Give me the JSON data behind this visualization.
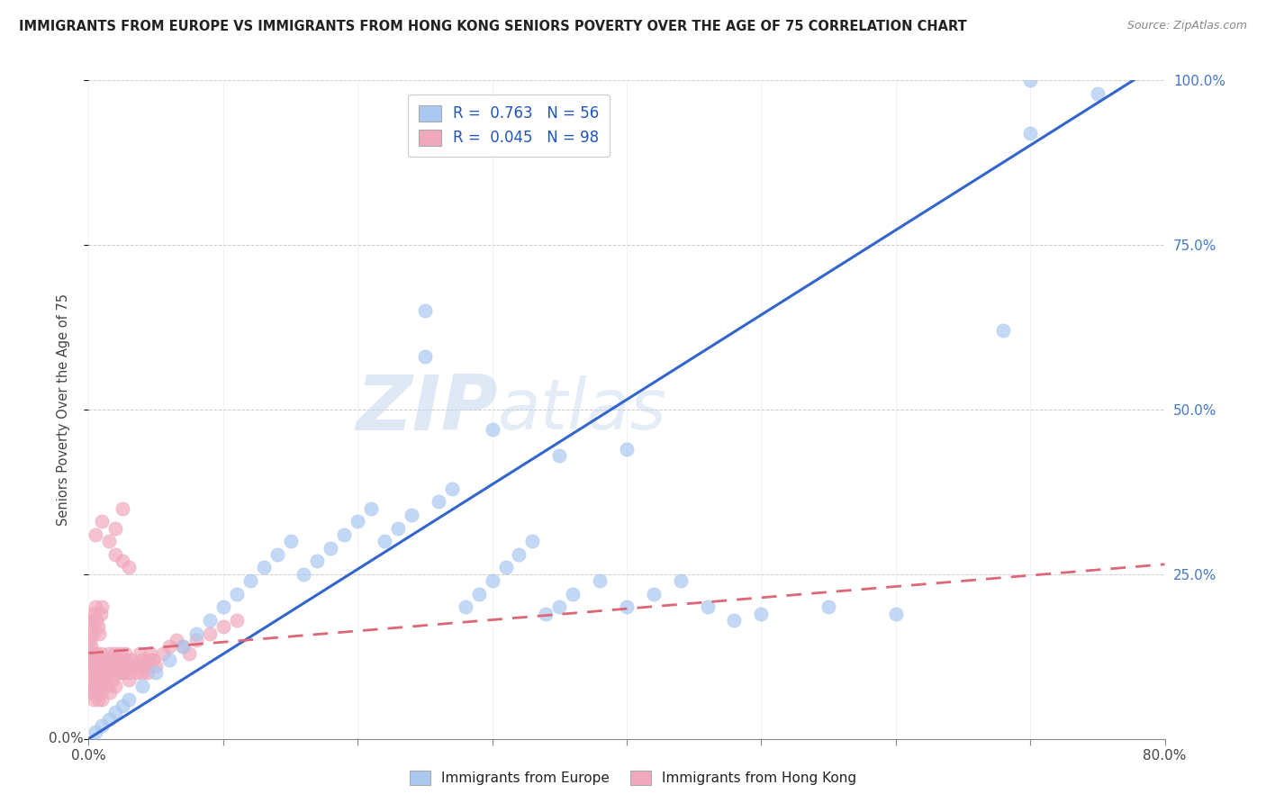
{
  "title": "IMMIGRANTS FROM EUROPE VS IMMIGRANTS FROM HONG KONG SENIORS POVERTY OVER THE AGE OF 75 CORRELATION CHART",
  "source": "Source: ZipAtlas.com",
  "ylabel": "Seniors Poverty Over the Age of 75",
  "xlim": [
    0,
    0.8
  ],
  "ylim": [
    0,
    1.0
  ],
  "legend_europe_label": "R =  0.763   N = 56",
  "legend_hk_label": "R =  0.045   N = 98",
  "legend_bottom_europe": "Immigrants from Europe",
  "legend_bottom_hk": "Immigrants from Hong Kong",
  "europe_color": "#aac8f0",
  "hk_color": "#f0a8bc",
  "europe_line_color": "#3366cc",
  "hk_line_color": "#dd6677",
  "watermark_zip": "ZIP",
  "watermark_atlas": "atlas",
  "background_color": "#ffffff",
  "europe_x": [
    0.005,
    0.01,
    0.015,
    0.02,
    0.025,
    0.03,
    0.04,
    0.05,
    0.06,
    0.07,
    0.08,
    0.09,
    0.1,
    0.11,
    0.12,
    0.13,
    0.14,
    0.15,
    0.16,
    0.17,
    0.18,
    0.19,
    0.2,
    0.21,
    0.22,
    0.23,
    0.24,
    0.25,
    0.26,
    0.27,
    0.28,
    0.29,
    0.3,
    0.31,
    0.32,
    0.33,
    0.34,
    0.35,
    0.36,
    0.38,
    0.4,
    0.42,
    0.44,
    0.46,
    0.48,
    0.5,
    0.55,
    0.6,
    0.68,
    0.7,
    0.25,
    0.3,
    0.35,
    0.4,
    0.7,
    0.75
  ],
  "europe_y": [
    0.01,
    0.02,
    0.03,
    0.04,
    0.05,
    0.06,
    0.08,
    0.1,
    0.12,
    0.14,
    0.16,
    0.18,
    0.2,
    0.22,
    0.24,
    0.26,
    0.28,
    0.3,
    0.25,
    0.27,
    0.29,
    0.31,
    0.33,
    0.35,
    0.3,
    0.32,
    0.34,
    0.58,
    0.36,
    0.38,
    0.2,
    0.22,
    0.24,
    0.26,
    0.28,
    0.3,
    0.19,
    0.2,
    0.22,
    0.24,
    0.2,
    0.22,
    0.24,
    0.2,
    0.18,
    0.19,
    0.2,
    0.19,
    0.62,
    1.0,
    0.65,
    0.47,
    0.43,
    0.44,
    0.92,
    0.98
  ],
  "hk_x": [
    0.001,
    0.001,
    0.002,
    0.002,
    0.003,
    0.003,
    0.004,
    0.004,
    0.005,
    0.005,
    0.006,
    0.006,
    0.007,
    0.007,
    0.008,
    0.008,
    0.009,
    0.009,
    0.01,
    0.01,
    0.011,
    0.012,
    0.013,
    0.014,
    0.015,
    0.015,
    0.016,
    0.017,
    0.018,
    0.019,
    0.02,
    0.021,
    0.022,
    0.023,
    0.024,
    0.025,
    0.026,
    0.027,
    0.028,
    0.029,
    0.03,
    0.032,
    0.034,
    0.036,
    0.038,
    0.04,
    0.042,
    0.044,
    0.046,
    0.048,
    0.05,
    0.055,
    0.06,
    0.065,
    0.07,
    0.075,
    0.08,
    0.09,
    0.1,
    0.11,
    0.001,
    0.002,
    0.003,
    0.004,
    0.005,
    0.006,
    0.007,
    0.008,
    0.009,
    0.01,
    0.012,
    0.014,
    0.016,
    0.018,
    0.02,
    0.025,
    0.03,
    0.035,
    0.04,
    0.045,
    0.001,
    0.002,
    0.003,
    0.004,
    0.005,
    0.006,
    0.007,
    0.008,
    0.009,
    0.01,
    0.015,
    0.02,
    0.025,
    0.03,
    0.025,
    0.02,
    0.01,
    0.005
  ],
  "hk_y": [
    0.12,
    0.15,
    0.11,
    0.14,
    0.1,
    0.13,
    0.09,
    0.12,
    0.08,
    0.11,
    0.1,
    0.13,
    0.09,
    0.12,
    0.08,
    0.11,
    0.1,
    0.13,
    0.09,
    0.12,
    0.11,
    0.1,
    0.12,
    0.11,
    0.13,
    0.1,
    0.12,
    0.11,
    0.1,
    0.13,
    0.12,
    0.11,
    0.1,
    0.13,
    0.12,
    0.11,
    0.1,
    0.13,
    0.12,
    0.11,
    0.1,
    0.12,
    0.11,
    0.1,
    0.13,
    0.12,
    0.11,
    0.1,
    0.13,
    0.12,
    0.11,
    0.13,
    0.14,
    0.15,
    0.14,
    0.13,
    0.15,
    0.16,
    0.17,
    0.18,
    0.07,
    0.08,
    0.07,
    0.06,
    0.08,
    0.07,
    0.06,
    0.08,
    0.07,
    0.06,
    0.09,
    0.08,
    0.07,
    0.09,
    0.08,
    0.1,
    0.09,
    0.11,
    0.1,
    0.12,
    0.18,
    0.17,
    0.16,
    0.19,
    0.2,
    0.18,
    0.17,
    0.16,
    0.19,
    0.2,
    0.3,
    0.28,
    0.27,
    0.26,
    0.35,
    0.32,
    0.33,
    0.31
  ]
}
